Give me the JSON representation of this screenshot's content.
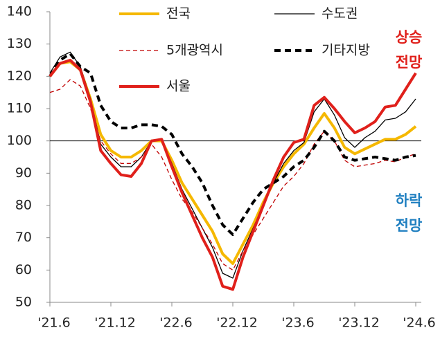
{
  "chart_data": {
    "type": "line",
    "categories": [
      "'21.6",
      null,
      null,
      null,
      null,
      null,
      "'21.12",
      null,
      null,
      null,
      null,
      null,
      "'22.6",
      null,
      null,
      null,
      null,
      null,
      "'22.12",
      null,
      null,
      null,
      null,
      null,
      "'23.6",
      null,
      null,
      null,
      null,
      null,
      "'23.12",
      null,
      null,
      null,
      null,
      null,
      "'24.6"
    ],
    "series": [
      {
        "name": "전국",
        "color": "#f5b800",
        "weight": "thick",
        "style": "solid",
        "values": [
          120,
          124,
          124.5,
          122,
          113,
          102,
          97,
          95,
          95,
          97,
          100,
          100,
          94,
          87,
          82,
          77,
          72,
          65,
          62,
          68,
          74,
          81,
          87,
          92,
          96,
          99,
          104,
          108.5,
          104,
          98,
          96,
          97.5,
          99,
          100.5,
          100.5,
          102,
          104.5
        ]
      },
      {
        "name": "수도권",
        "color": "#000000",
        "weight": "thin",
        "style": "solid",
        "values": [
          121,
          126,
          127.5,
          123,
          113,
          99,
          95,
          92,
          92,
          95,
          100,
          100.5,
          93,
          85,
          79,
          73,
          67,
          59,
          57.5,
          66,
          73,
          80,
          87,
          93,
          97,
          99.5,
          109,
          113,
          108,
          101,
          98,
          101,
          103,
          106.5,
          107,
          109,
          113
        ]
      },
      {
        "name": "5개광역시",
        "color": "#c00000",
        "weight": "thin",
        "style": "dashed",
        "values": [
          115,
          116,
          119,
          117,
          110,
          100,
          96,
          93,
          93,
          95,
          99,
          95,
          88,
          82,
          78,
          73,
          68,
          62,
          60,
          66,
          71,
          76,
          81,
          86,
          89,
          93,
          99,
          103,
          100,
          94,
          92,
          92.5,
          93,
          94,
          93.5,
          95,
          96
        ]
      },
      {
        "name": "기타지방",
        "color": "#000000",
        "weight": "thick",
        "style": "dashed",
        "values": [
          120,
          125,
          127,
          123,
          121,
          111,
          106,
          104,
          104,
          105,
          105,
          104.5,
          102,
          96,
          92,
          87,
          80,
          74,
          71,
          76,
          81,
          85,
          87,
          89,
          92,
          94,
          98,
          103,
          100,
          95,
          94,
          94.5,
          95,
          94.5,
          94,
          95,
          95.5
        ]
      },
      {
        "name": "서울",
        "color": "#e0201b",
        "weight": "thick",
        "style": "solid",
        "values": [
          120,
          124,
          125,
          122,
          112,
          97,
          93,
          89.5,
          89,
          93,
          100,
          100.5,
          92,
          84,
          77,
          70,
          64,
          55,
          54,
          64,
          72,
          80,
          88,
          95,
          99.5,
          100.5,
          111,
          113.5,
          110,
          106,
          102.5,
          104,
          106,
          110.5,
          111,
          116,
          121
        ]
      }
    ],
    "ylim": [
      50,
      140
    ],
    "yticks": [
      50,
      60,
      70,
      80,
      90,
      100,
      110,
      120,
      130,
      140
    ],
    "reference_line": 100,
    "annotations": [
      {
        "lines": [
          "상승",
          "전망"
        ],
        "color": "#e0201b"
      },
      {
        "lines": [
          "하락",
          "전망"
        ],
        "color": "#1f7fc0"
      }
    ]
  }
}
